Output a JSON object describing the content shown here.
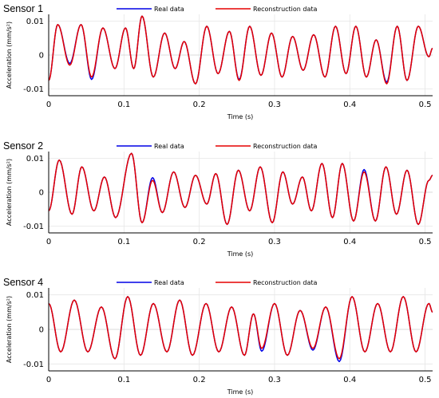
{
  "chart_data": [
    {
      "type": "line",
      "title": "Sensor 1",
      "xlabel": "Time (s)",
      "ylabel": "Acceleration (mm/s²)",
      "xlim": [
        0,
        0.51
      ],
      "ylim": [
        -0.012,
        0.012
      ],
      "x_ticks": [
        0,
        0.1,
        0.2,
        0.3,
        0.4,
        0.5
      ],
      "x_tick_labels": [
        "0",
        "0.1",
        "0.2",
        "0.3",
        "0.4",
        "0.5"
      ],
      "y_ticks": [
        -0.01,
        0,
        0.01
      ],
      "y_tick_labels": [
        "-0.01",
        "0",
        "0.01"
      ],
      "legend_position": "top",
      "grid": true,
      "extrema": [
        [
          0,
          -0.0075
        ],
        [
          0.012,
          0.009
        ],
        [
          0.028,
          -0.003
        ],
        [
          0.043,
          0.009
        ],
        [
          0.057,
          -0.0065
        ],
        [
          0.072,
          0.008
        ],
        [
          0.088,
          -0.004
        ],
        [
          0.102,
          0.008
        ],
        [
          0.113,
          -0.004
        ],
        [
          0.124,
          0.0115
        ],
        [
          0.139,
          -0.0065
        ],
        [
          0.154,
          0.0065
        ],
        [
          0.168,
          -0.004
        ],
        [
          0.18,
          0.004
        ],
        [
          0.195,
          -0.0085
        ],
        [
          0.21,
          0.0085
        ],
        [
          0.225,
          -0.0055
        ],
        [
          0.24,
          0.007
        ],
        [
          0.253,
          -0.0075
        ],
        [
          0.267,
          0.0085
        ],
        [
          0.282,
          -0.006
        ],
        [
          0.296,
          0.0065
        ],
        [
          0.31,
          -0.0065
        ],
        [
          0.324,
          0.0055
        ],
        [
          0.338,
          -0.0045
        ],
        [
          0.352,
          0.006
        ],
        [
          0.367,
          -0.0065
        ],
        [
          0.381,
          0.0085
        ],
        [
          0.395,
          -0.0055
        ],
        [
          0.408,
          0.0085
        ],
        [
          0.422,
          -0.0065
        ],
        [
          0.435,
          0.0045
        ],
        [
          0.449,
          -0.0085
        ],
        [
          0.463,
          0.0085
        ],
        [
          0.476,
          -0.0075
        ],
        [
          0.491,
          0.0085
        ],
        [
          0.505,
          -0.0005
        ],
        [
          0.51,
          0.002
        ]
      ],
      "series": [
        {
          "name": "Real data",
          "color": "#0000e6",
          "deviations": [
            [
              0.028,
              -0.0025
            ],
            [
              0.057,
              -0.0072
            ],
            [
              0.253,
              -0.0072
            ],
            [
              0.449,
              -0.008
            ]
          ]
        },
        {
          "name": "Reconstruction data",
          "color": "#e60000",
          "deviations": []
        }
      ]
    },
    {
      "type": "line",
      "title": "Sensor 2",
      "xlabel": "Time (s)",
      "ylabel": "Acceleration (mm/s²)",
      "xlim": [
        0,
        0.51
      ],
      "ylim": [
        -0.012,
        0.012
      ],
      "x_ticks": [
        0,
        0.1,
        0.2,
        0.3,
        0.4,
        0.5
      ],
      "x_tick_labels": [
        "0",
        "0.1",
        "0.2",
        "0.3",
        "0.4",
        "0.5"
      ],
      "y_ticks": [
        -0.01,
        0,
        0.01
      ],
      "y_tick_labels": [
        "-0.01",
        "0",
        "0.01"
      ],
      "legend_position": "top",
      "grid": true,
      "extrema": [
        [
          0,
          -0.0055
        ],
        [
          0.014,
          0.0095
        ],
        [
          0.031,
          -0.0065
        ],
        [
          0.044,
          0.0075
        ],
        [
          0.06,
          -0.0055
        ],
        [
          0.074,
          0.0045
        ],
        [
          0.089,
          -0.0075
        ],
        [
          0.11,
          0.0115
        ],
        [
          0.124,
          -0.009
        ],
        [
          0.138,
          0.0035
        ],
        [
          0.151,
          -0.006
        ],
        [
          0.166,
          0.006
        ],
        [
          0.181,
          -0.0045
        ],
        [
          0.195,
          0.005
        ],
        [
          0.21,
          -0.0035
        ],
        [
          0.222,
          0.0055
        ],
        [
          0.237,
          -0.0095
        ],
        [
          0.252,
          0.0065
        ],
        [
          0.267,
          -0.0055
        ],
        [
          0.281,
          0.0075
        ],
        [
          0.297,
          -0.009
        ],
        [
          0.311,
          0.006
        ],
        [
          0.324,
          -0.0035
        ],
        [
          0.337,
          0.0045
        ],
        [
          0.349,
          -0.0055
        ],
        [
          0.363,
          0.0085
        ],
        [
          0.377,
          -0.0075
        ],
        [
          0.39,
          0.0085
        ],
        [
          0.405,
          -0.0085
        ],
        [
          0.419,
          0.006
        ],
        [
          0.434,
          -0.0085
        ],
        [
          0.448,
          0.0075
        ],
        [
          0.462,
          -0.0065
        ],
        [
          0.476,
          0.0065
        ],
        [
          0.491,
          -0.0095
        ],
        [
          0.505,
          0.0035
        ],
        [
          0.51,
          0.005
        ]
      ],
      "series": [
        {
          "name": "Real data",
          "color": "#0000e6",
          "deviations": [
            [
              0.138,
              0.0043
            ],
            [
              0.419,
              0.0067
            ]
          ]
        },
        {
          "name": "Reconstruction data",
          "color": "#e60000",
          "deviations": []
        }
      ]
    },
    {
      "type": "line",
      "title": "Sensor 4",
      "xlabel": "Time (s)",
      "ylabel": "Acceleration (mm/s²)",
      "xlim": [
        0,
        0.51
      ],
      "ylim": [
        -0.012,
        0.012
      ],
      "x_ticks": [
        0,
        0.1,
        0.2,
        0.3,
        0.4,
        0.5
      ],
      "x_tick_labels": [
        "0",
        "0.1",
        "0.2",
        "0.3",
        "0.4",
        "0.5"
      ],
      "y_ticks": [
        -0.01,
        0,
        0.01
      ],
      "y_tick_labels": [
        "-0.01",
        "0",
        "0.01"
      ],
      "legend_position": "top",
      "grid": true,
      "extrema": [
        [
          0,
          0.0075
        ],
        [
          0.016,
          -0.0065
        ],
        [
          0.034,
          0.0085
        ],
        [
          0.052,
          -0.0065
        ],
        [
          0.07,
          0.0065
        ],
        [
          0.088,
          -0.0085
        ],
        [
          0.105,
          0.0095
        ],
        [
          0.122,
          -0.0075
        ],
        [
          0.139,
          0.0075
        ],
        [
          0.157,
          -0.0065
        ],
        [
          0.174,
          0.0085
        ],
        [
          0.191,
          -0.0075
        ],
        [
          0.209,
          0.0075
        ],
        [
          0.226,
          -0.0065
        ],
        [
          0.243,
          0.0065
        ],
        [
          0.26,
          -0.0075
        ],
        [
          0.272,
          0.0045
        ],
        [
          0.283,
          -0.0055
        ],
        [
          0.3,
          0.0075
        ],
        [
          0.317,
          -0.0075
        ],
        [
          0.334,
          0.0055
        ],
        [
          0.351,
          -0.0055
        ],
        [
          0.368,
          0.0065
        ],
        [
          0.386,
          -0.0085
        ],
        [
          0.403,
          0.0095
        ],
        [
          0.42,
          -0.0065
        ],
        [
          0.437,
          0.0075
        ],
        [
          0.454,
          -0.0065
        ],
        [
          0.471,
          0.0095
        ],
        [
          0.488,
          -0.0065
        ],
        [
          0.505,
          0.0075
        ],
        [
          0.51,
          0.005
        ]
      ],
      "series": [
        {
          "name": "Real data",
          "color": "#0000e6",
          "deviations": [
            [
              0.283,
              -0.0063
            ],
            [
              0.351,
              -0.006
            ],
            [
              0.386,
              -0.0093
            ]
          ]
        },
        {
          "name": "Reconstruction data",
          "color": "#e60000",
          "deviations": []
        }
      ]
    }
  ]
}
